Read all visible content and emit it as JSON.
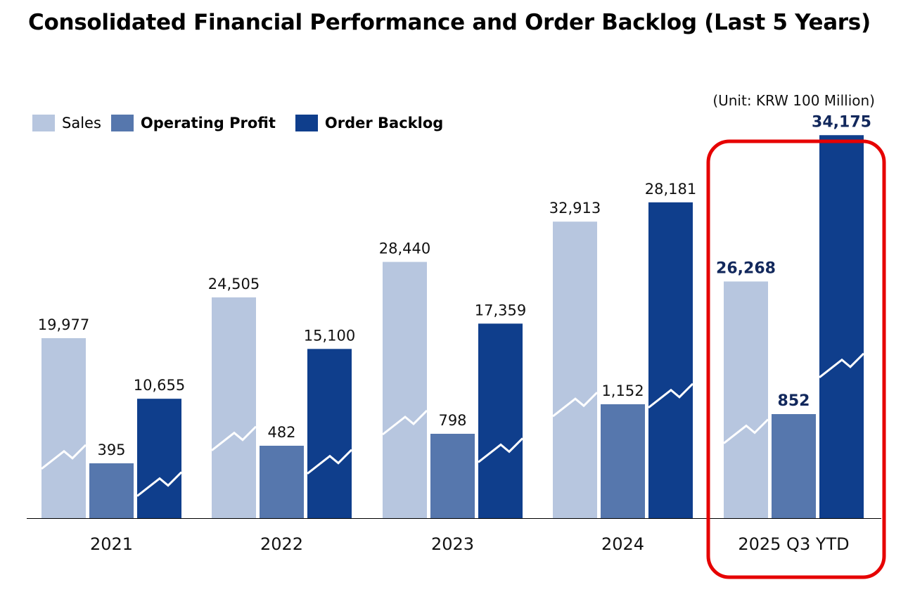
{
  "chart_data": {
    "type": "bar",
    "title": "Consolidated Financial Performance and Order Backlog (Last 5 Years)",
    "unit_note": "(Unit: KRW 100 Million)",
    "xlabel": "",
    "ylabel": "",
    "categories": [
      "2021",
      "2022",
      "2023",
      "2024",
      "2025 Q3 YTD"
    ],
    "series": [
      {
        "name": "Sales",
        "color": "#b7c6df",
        "values": [
          19977,
          24505,
          28440,
          32913,
          26268
        ],
        "labels": [
          "19,977",
          "24,505",
          "28,440",
          "32,913",
          "26,268"
        ]
      },
      {
        "name": "Operating Profit",
        "color": "#5677ad",
        "values": [
          395,
          482,
          798,
          1152,
          852
        ],
        "labels": [
          "395",
          "482",
          "798",
          "1,152",
          "852"
        ]
      },
      {
        "name": "Order Backlog",
        "color": "#0f3e8c",
        "values": [
          10655,
          15100,
          17359,
          28181,
          34175
        ],
        "labels": [
          "10,655",
          "15,100",
          "17,359",
          "28,181",
          "34,175"
        ]
      }
    ],
    "highlight": {
      "category": "2025 Q3 YTD",
      "box_color": "#e60000",
      "label_color": "#12285c"
    },
    "legend_position": "top-left",
    "grid": false
  }
}
